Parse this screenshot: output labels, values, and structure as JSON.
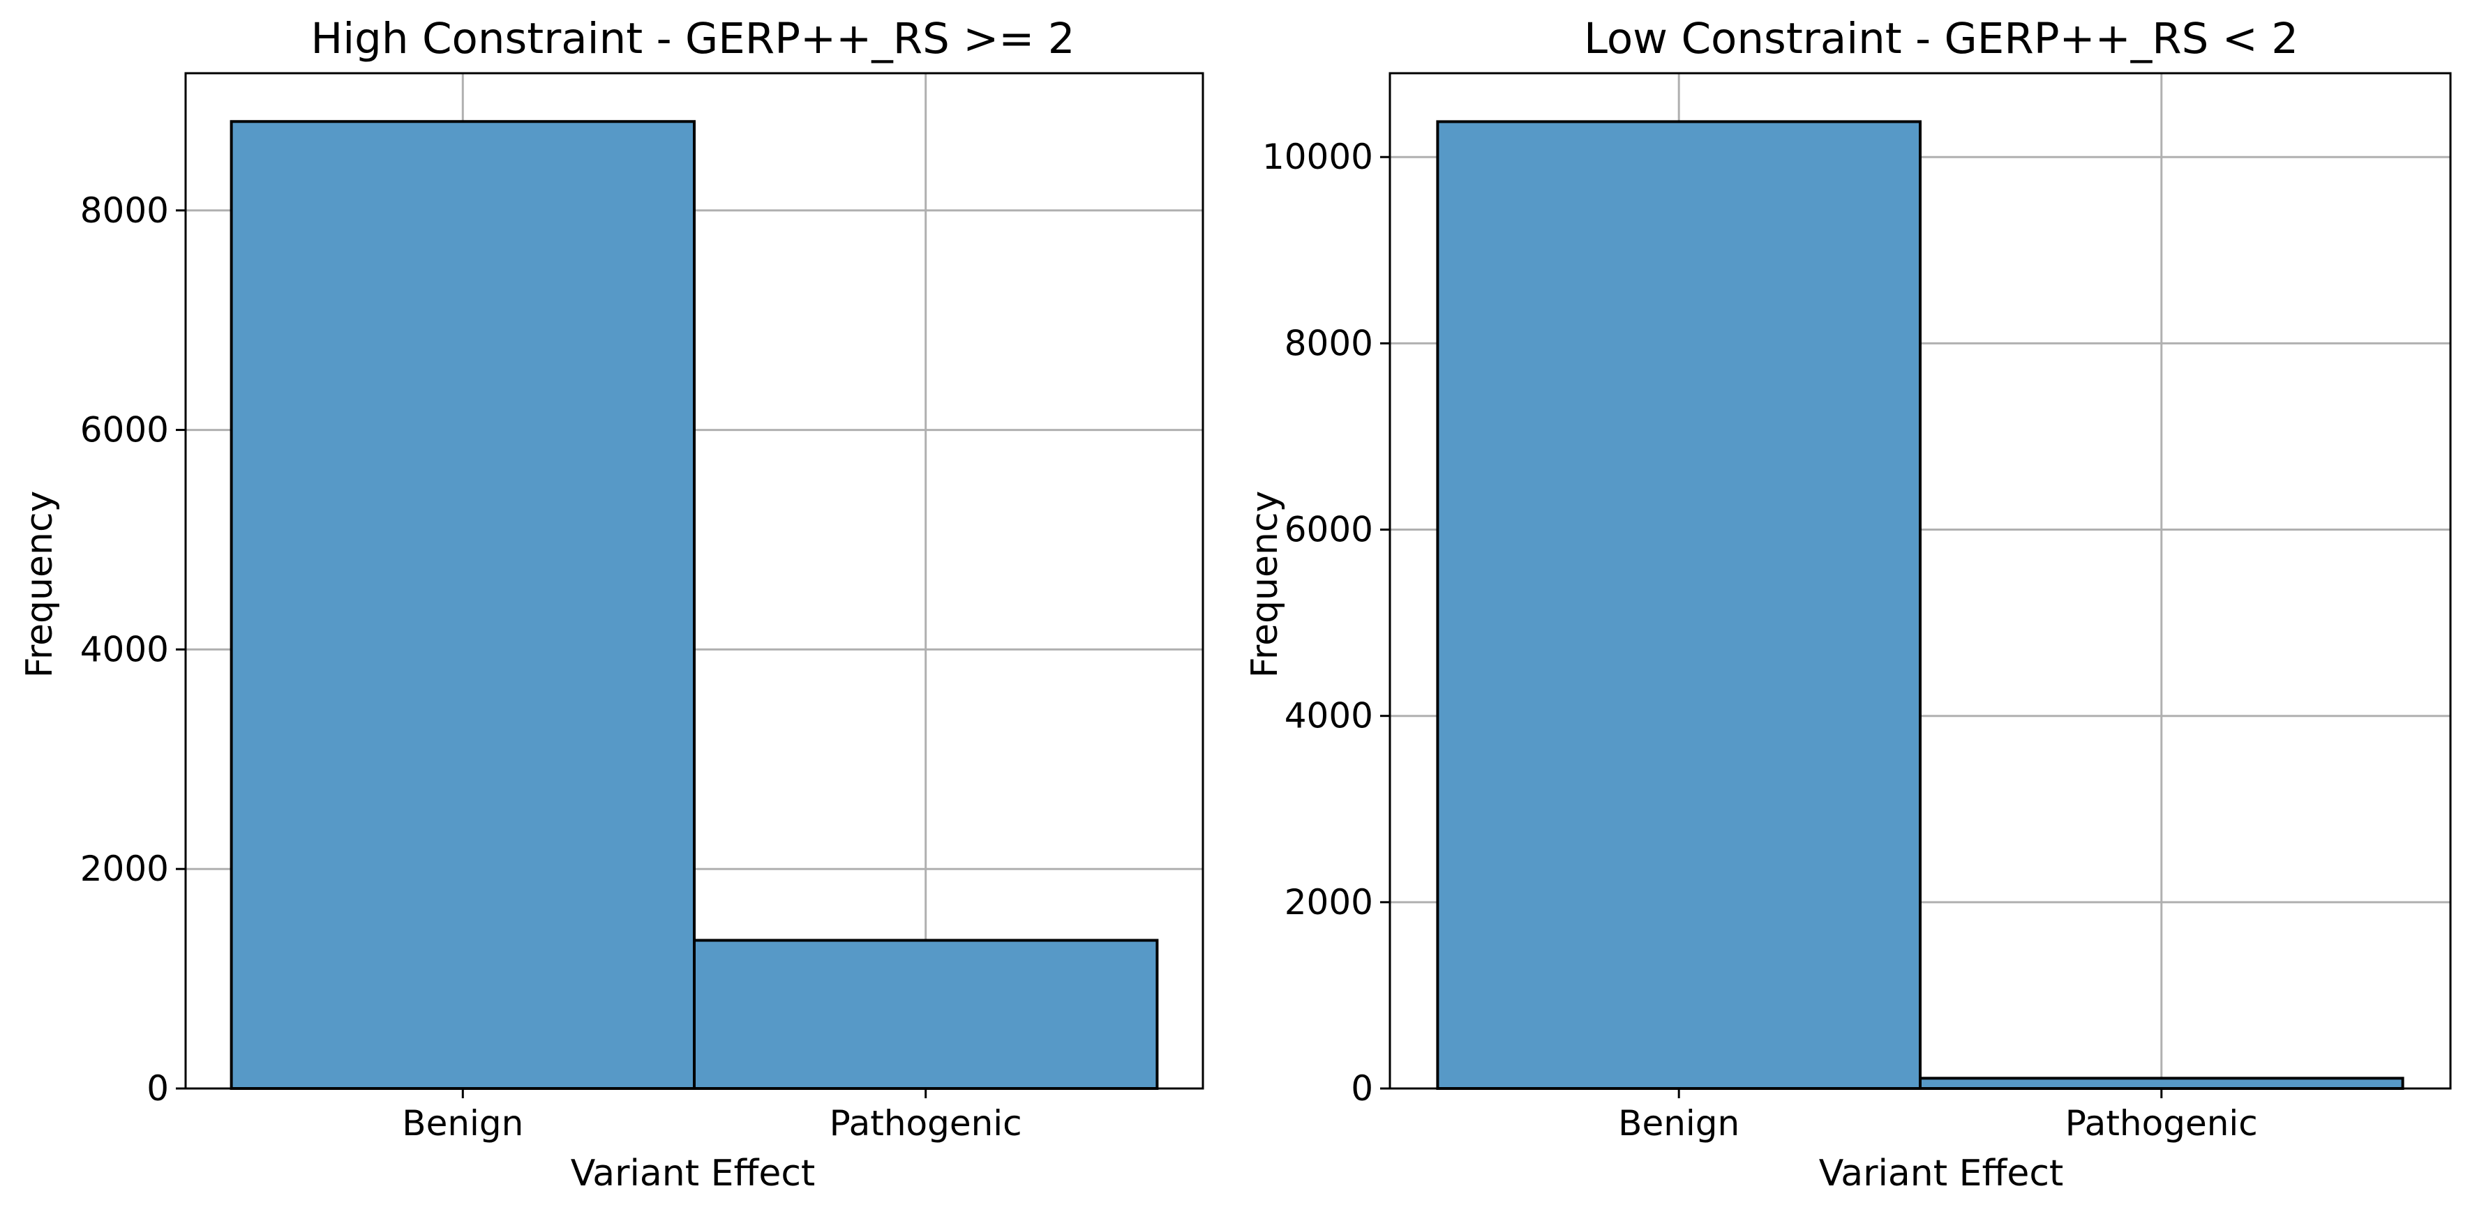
{
  "chart_data": [
    {
      "type": "bar",
      "title": "High Constraint - GERP++_RS >= 2",
      "xlabel": "Variant Effect",
      "ylabel": "Frequency",
      "categories": [
        "Benign",
        "Pathogenic"
      ],
      "values": [
        8810,
        1350
      ],
      "ylim": [
        0,
        9250
      ],
      "yticks": [
        0,
        2000,
        4000,
        6000,
        8000
      ],
      "ytick_labels": [
        "0",
        "2000",
        "4000",
        "6000",
        "8000"
      ],
      "grid": true,
      "bar_color": "#5799c7",
      "edge_color": "#000000"
    },
    {
      "type": "bar",
      "title": "Low Constraint - GERP++_RS < 2",
      "xlabel": "Variant Effect",
      "ylabel": "Frequency",
      "categories": [
        "Benign",
        "Pathogenic"
      ],
      "values": [
        10380,
        110
      ],
      "ylim": [
        0,
        10900
      ],
      "yticks": [
        0,
        2000,
        4000,
        6000,
        8000,
        10000
      ],
      "ytick_labels": [
        "0",
        "2000",
        "4000",
        "6000",
        "8000",
        "10000"
      ],
      "grid": true,
      "bar_color": "#5799c7",
      "edge_color": "#000000"
    }
  ]
}
